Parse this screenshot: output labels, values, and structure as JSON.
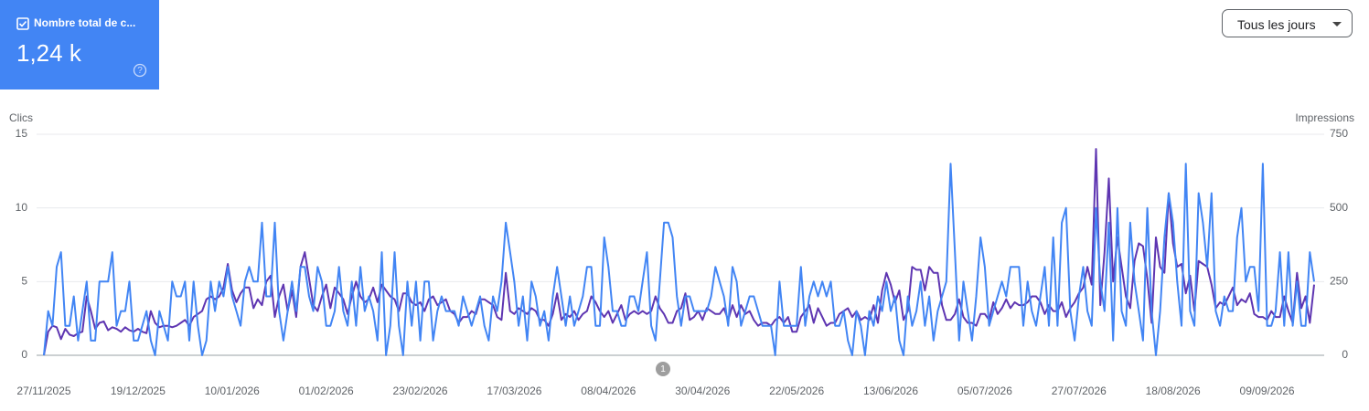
{
  "card": {
    "title": "Nombre total de c...",
    "value": "1,24 k"
  },
  "dropdown": {
    "label": "Tous les jours"
  },
  "annotations": [
    {
      "text": "1"
    }
  ],
  "chart_data": {
    "type": "line",
    "ylabel": "Clics",
    "y2label": "Impressions",
    "ylim": [
      0,
      15
    ],
    "yticks": [
      0,
      5,
      10,
      15
    ],
    "y2lim": [
      0,
      750
    ],
    "y2ticks": [
      0,
      250,
      500,
      750
    ],
    "grid": true,
    "categories": [
      "27/11/2025",
      null,
      null,
      null,
      null,
      null,
      null,
      null,
      null,
      null,
      null,
      null,
      null,
      null,
      null,
      null,
      null,
      null,
      null,
      null,
      null,
      null,
      "19/12/2025",
      null,
      null,
      null,
      null,
      null,
      null,
      null,
      null,
      null,
      null,
      null,
      null,
      null,
      null,
      null,
      null,
      null,
      null,
      null,
      null,
      null,
      "10/01/2026",
      null,
      null,
      null,
      null,
      null,
      null,
      null,
      null,
      null,
      null,
      null,
      null,
      null,
      null,
      null,
      null,
      null,
      null,
      null,
      null,
      null,
      "01/02/2026",
      null,
      null,
      null,
      null,
      null,
      null,
      null,
      null,
      null,
      null,
      null,
      null,
      null,
      null,
      null,
      null,
      null,
      null,
      null,
      null,
      null,
      "23/02/2026",
      null,
      null,
      null,
      null,
      null,
      null,
      null,
      null,
      null,
      null,
      null,
      null,
      null,
      null,
      null,
      null,
      null,
      null,
      null,
      null,
      null,
      "17/03/2026",
      null,
      null,
      null,
      null,
      null,
      null,
      null,
      null,
      null,
      null,
      null,
      null,
      null,
      null,
      null,
      null,
      null,
      null,
      null,
      null,
      null,
      "08/04/2026",
      null,
      null,
      null,
      null,
      null,
      null,
      null,
      null,
      null,
      null,
      null,
      null,
      null,
      null,
      null,
      null,
      null,
      null,
      null,
      null,
      null,
      "30/04/2026",
      null,
      null,
      null,
      null,
      null,
      null,
      null,
      null,
      null,
      null,
      null,
      null,
      null,
      null,
      null,
      null,
      null,
      null,
      null,
      null,
      null,
      "22/05/2026",
      null,
      null,
      null,
      null,
      null,
      null,
      null,
      null,
      null,
      null,
      null,
      null,
      null,
      null,
      null,
      null,
      null,
      null,
      null,
      null,
      null,
      "13/06/2026",
      null,
      null,
      null,
      null,
      null,
      null,
      null,
      null,
      null,
      null,
      null,
      null,
      null,
      null,
      null,
      null,
      null,
      null,
      null,
      null,
      null,
      "05/07/2026",
      null,
      null,
      null,
      null,
      null,
      null,
      null,
      null,
      null,
      null,
      null,
      null,
      null,
      null,
      null,
      null,
      null,
      null,
      null,
      null,
      null,
      "27/07/2026",
      null,
      null,
      null,
      null,
      null,
      null,
      null,
      null,
      null,
      null,
      null,
      null,
      null,
      null,
      null,
      null,
      null,
      null,
      null,
      null,
      null,
      "18/08/2026",
      null,
      null,
      null,
      null,
      null,
      null,
      null,
      null,
      null,
      null,
      null,
      null,
      null,
      null,
      null,
      null,
      null,
      null,
      null,
      null,
      null,
      "09/09/2026",
      null,
      null,
      null,
      null,
      null,
      null,
      null,
      null,
      null,
      null,
      null
    ],
    "series": [
      {
        "name": "Impressions",
        "color": "#5e35b1",
        "axis": "y2",
        "values": [
          0,
          80,
          100,
          95,
          55,
          90,
          70,
          65,
          75,
          80,
          200,
          150,
          90,
          110,
          115,
          85,
          95,
          90,
          80,
          95,
          85,
          80,
          90,
          80,
          75,
          150,
          110,
          95,
          100,
          100,
          95,
          100,
          110,
          120,
          100,
          130,
          140,
          150,
          190,
          200,
          190,
          200,
          230,
          310,
          220,
          180,
          210,
          230,
          230,
          160,
          190,
          170,
          250,
          270,
          130,
          200,
          240,
          150,
          220,
          130,
          300,
          350,
          260,
          170,
          150,
          200,
          240,
          160,
          230,
          210,
          190,
          140,
          200,
          250,
          200,
          180,
          190,
          230,
          180,
          240,
          220,
          200,
          190,
          150,
          210,
          210,
          180,
          170,
          180,
          150,
          190,
          200,
          170,
          180,
          190,
          150,
          140,
          110,
          130,
          130,
          150,
          140,
          190,
          190,
          180,
          170,
          130,
          120,
          280,
          150,
          140,
          160,
          150,
          140,
          160,
          150,
          120,
          120,
          100,
          140,
          210,
          120,
          140,
          130,
          150,
          120,
          140,
          150,
          200,
          180,
          150,
          130,
          150,
          110,
          140,
          170,
          120,
          140,
          150,
          140,
          150,
          140,
          150,
          200,
          160,
          140,
          110,
          110,
          150,
          160,
          210,
          120,
          130,
          150,
          120,
          160,
          150,
          140,
          140,
          160,
          120,
          170,
          130,
          170,
          140,
          150,
          120,
          100,
          110,
          110,
          100,
          120,
          130,
          110,
          130,
          80,
          80,
          130,
          150,
          170,
          110,
          160,
          130,
          100,
          110,
          110,
          140,
          150,
          160,
          130,
          150,
          120,
          130,
          120,
          170,
          110,
          220,
          280,
          240,
          180,
          220,
          120,
          150,
          300,
          290,
          290,
          220,
          300,
          280,
          280,
          170,
          120,
          120,
          140,
          190,
          130,
          110,
          110,
          100,
          140,
          140,
          120,
          180,
          140,
          160,
          190,
          160,
          180,
          170,
          170,
          180,
          200,
          200,
          180,
          140,
          170,
          150,
          150,
          180,
          130,
          160,
          180,
          210,
          230,
          300,
          240,
          700,
          170,
          350,
          600,
          250,
          400,
          300,
          200,
          160,
          320,
          380,
          370,
          260,
          110,
          400,
          300,
          280,
          550,
          380,
          300,
          310,
          210,
          270,
          150,
          320,
          310,
          300,
          240,
          160,
          180,
          170,
          200,
          230,
          170,
          190,
          180,
          210,
          140,
          130,
          130,
          120,
          150,
          130,
          130,
          200,
          150,
          110,
          280,
          160,
          200,
          110,
          240
        ]
      },
      {
        "name": "Clics",
        "color": "#4285f4",
        "values": [
          0,
          3,
          2,
          6,
          7,
          2,
          2,
          4,
          1,
          3,
          5,
          1,
          1,
          5,
          5,
          5,
          7,
          2,
          3,
          3,
          5,
          1,
          1,
          2,
          3,
          1,
          0,
          3,
          2,
          1,
          5,
          4,
          4,
          5,
          1,
          5,
          2,
          0,
          1,
          5,
          3,
          5,
          4,
          6,
          4,
          3,
          2,
          5,
          6,
          5,
          5,
          9,
          4,
          4,
          9,
          3,
          1,
          3,
          5,
          3,
          6,
          6,
          4,
          3,
          6,
          5,
          2,
          2,
          3,
          6,
          3,
          2,
          5,
          2,
          6,
          3,
          4,
          3,
          1,
          7,
          0,
          2,
          7,
          2,
          0,
          5,
          2,
          5,
          1,
          5,
          5,
          1,
          3,
          4,
          3,
          3,
          3,
          2,
          4,
          3,
          2,
          3,
          4,
          2,
          1,
          4,
          3,
          5,
          9,
          7,
          5,
          2,
          4,
          1,
          5,
          4,
          2,
          3,
          1,
          4,
          6,
          4,
          2,
          4,
          2,
          3,
          4,
          6,
          6,
          2,
          2,
          8,
          6,
          3,
          3,
          2,
          2,
          4,
          4,
          3,
          5,
          7,
          2,
          1,
          5,
          9,
          9,
          8,
          4,
          2,
          4,
          4,
          3,
          3,
          3,
          3,
          4,
          6,
          5,
          4,
          2,
          6,
          5,
          2,
          3,
          4,
          4,
          3,
          2,
          2,
          2,
          0,
          5,
          2,
          2,
          2,
          2,
          6,
          2,
          4,
          5,
          4,
          5,
          4,
          5,
          2,
          2,
          3,
          1,
          0,
          3,
          2,
          0,
          3,
          2,
          4,
          3,
          5,
          3,
          4,
          1,
          0,
          4,
          2,
          3,
          5,
          2,
          4,
          1,
          3,
          4,
          5,
          13,
          7,
          1,
          5,
          3,
          1,
          4,
          8,
          6,
          2,
          3,
          4,
          5,
          4,
          6,
          6,
          6,
          2,
          5,
          3,
          2,
          4,
          6,
          2,
          8,
          2,
          9,
          10,
          3,
          1,
          4,
          6,
          3,
          2,
          10,
          5,
          3,
          9,
          1,
          10,
          3,
          2,
          9,
          5,
          3,
          1,
          10,
          3,
          0,
          3,
          8,
          11,
          9,
          5,
          2,
          13,
          3,
          2,
          11,
          9,
          6,
          11,
          3,
          2,
          4,
          3,
          3,
          8,
          10,
          5,
          6,
          6,
          3,
          13,
          2,
          2,
          3,
          7,
          2,
          7,
          2,
          5,
          2,
          2,
          7,
          5
        ]
      }
    ]
  }
}
